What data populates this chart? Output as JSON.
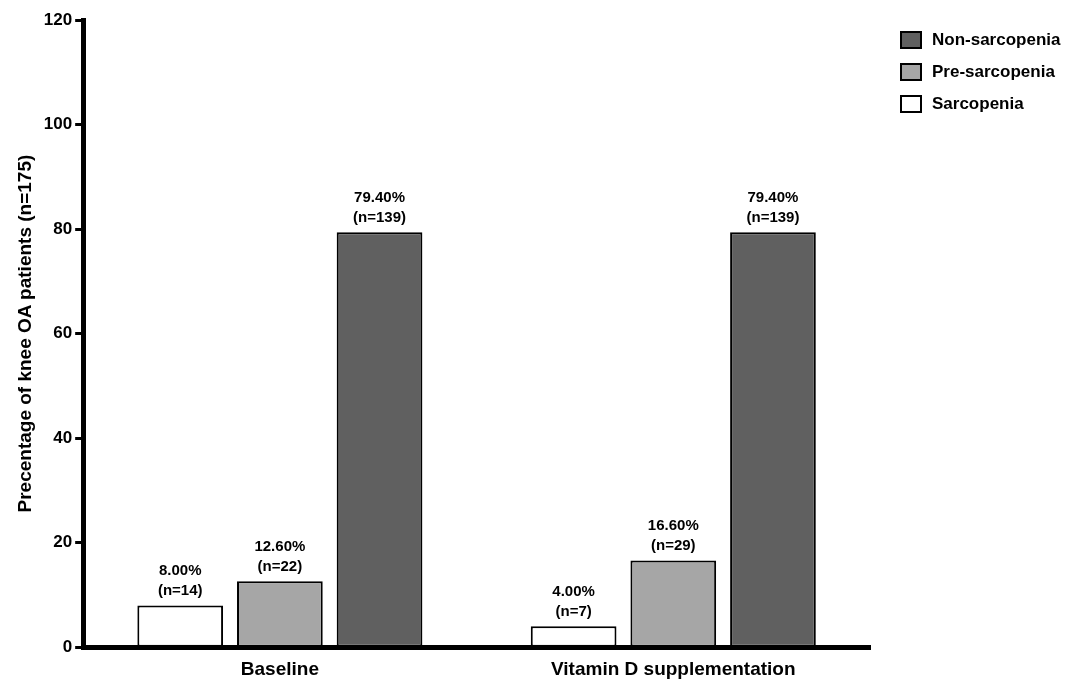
{
  "chart_data": {
    "type": "bar",
    "ylabel": "Precentage of knee OA patients (n=175)",
    "categories": [
      "Baseline",
      "Vitamin D supplementation"
    ],
    "series": [
      {
        "name": "Sarcopenia",
        "color": "#ffffff",
        "values": [
          8.0,
          4.0
        ],
        "value_labels": [
          "8.00%\n(n=14)",
          "4.00%\n(n=7)"
        ]
      },
      {
        "name": "Pre-sarcopenia",
        "color": "#a6a6a6",
        "values": [
          12.6,
          16.6
        ],
        "value_labels": [
          "12.60%\n(n=22)",
          "16.60%\n(n=29)"
        ]
      },
      {
        "name": "Non-sarcopenia",
        "color": "#606060",
        "values": [
          79.4,
          79.4
        ],
        "value_labels": [
          "79.40%\n(n=139)",
          "79.40%\n(n=139)"
        ]
      }
    ],
    "ylim": [
      0,
      120
    ],
    "yticks": [
      0,
      20,
      40,
      60,
      80,
      100,
      120
    ],
    "grid": false,
    "legend": "right"
  }
}
